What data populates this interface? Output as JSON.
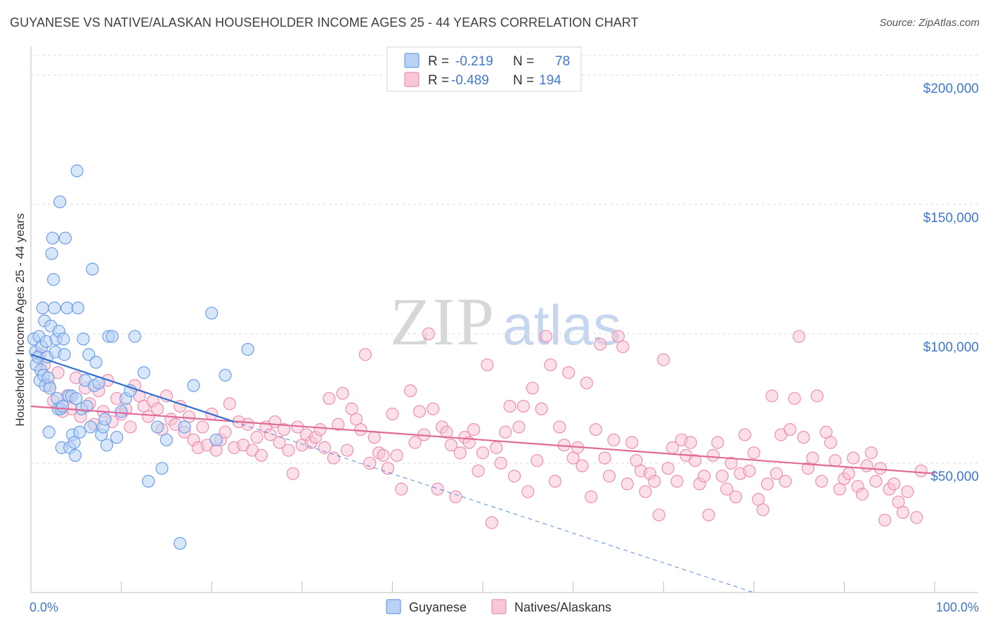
{
  "header": {
    "title": "GUYANESE VS NATIVE/ALASKAN HOUSEHOLDER INCOME AGES 25 - 44 YEARS CORRELATION CHART",
    "source": "Source: ZipAtlas.com"
  },
  "watermark": {
    "zip": "ZIP",
    "atlas": "atlas"
  },
  "colors": {
    "guyanese": "#6c9fe6",
    "guyanese_fill": "#b8d2f5",
    "natives": "#ec8fb0",
    "natives_fill": "#f7c6d7",
    "trend_blue": "#2f6fd0",
    "trend_pink": "#e06a98",
    "axis_text": "#3f78c8",
    "grid": "#dcdcdc"
  },
  "legend": {
    "rows": [
      {
        "r_label": "R =",
        "r_value": "-0.219",
        "n_label": "N =",
        "n_value": "78"
      },
      {
        "r_label": "R =",
        "r_value": "-0.489",
        "n_label": "N =",
        "n_value": "194"
      }
    ]
  },
  "chart_data": {
    "type": "scatter",
    "title": "GUYANESE VS NATIVE/ALASKAN HOUSEHOLDER INCOME AGES 25 - 44 YEARS CORRELATION CHART",
    "xlabel": "",
    "ylabel": "Householder Income Ages 25 - 44 years",
    "xlim": [
      0,
      100
    ],
    "ylim": [
      0,
      210000
    ],
    "x_tick_labels": [
      "0.0%",
      "100.0%"
    ],
    "y_ticks": [
      50000,
      100000,
      150000,
      200000
    ],
    "y_tick_labels": [
      "$50,000",
      "$100,000",
      "$150,000",
      "$200,000"
    ],
    "grid": true,
    "legend_position": "top-center",
    "series": [
      {
        "name": "Guyanese",
        "r": -0.219,
        "n": 78,
        "trend": {
          "x0": 0,
          "y0": 92000,
          "x1": 22.5,
          "y1": 66000,
          "dashed_to_x": 80,
          "dashed_to_y": 0
        },
        "points": [
          [
            0.3,
            98000
          ],
          [
            0.5,
            93000
          ],
          [
            0.6,
            88000
          ],
          [
            0.8,
            91000
          ],
          [
            0.9,
            99000
          ],
          [
            1.0,
            82000
          ],
          [
            1.1,
            86000
          ],
          [
            1.2,
            95000
          ],
          [
            1.3,
            110000
          ],
          [
            1.4,
            84000
          ],
          [
            1.5,
            105000
          ],
          [
            1.6,
            80000
          ],
          [
            1.7,
            97000
          ],
          [
            1.8,
            91000
          ],
          [
            1.9,
            83000
          ],
          [
            2.0,
            62000
          ],
          [
            2.1,
            79000
          ],
          [
            2.2,
            103000
          ],
          [
            2.3,
            131000
          ],
          [
            2.4,
            137000
          ],
          [
            2.5,
            121000
          ],
          [
            2.6,
            110000
          ],
          [
            2.7,
            93000
          ],
          [
            2.8,
            98000
          ],
          [
            2.9,
            75000
          ],
          [
            3.0,
            71000
          ],
          [
            3.1,
            101000
          ],
          [
            3.2,
            151000
          ],
          [
            3.3,
            71000
          ],
          [
            3.4,
            56000
          ],
          [
            3.5,
            72000
          ],
          [
            3.6,
            98000
          ],
          [
            3.7,
            92000
          ],
          [
            3.8,
            137000
          ],
          [
            4.0,
            110000
          ],
          [
            4.2,
            76000
          ],
          [
            4.3,
            56000
          ],
          [
            4.5,
            76000
          ],
          [
            4.6,
            61000
          ],
          [
            4.8,
            58000
          ],
          [
            4.9,
            53000
          ],
          [
            5.0,
            75000
          ],
          [
            5.1,
            163000
          ],
          [
            5.2,
            110000
          ],
          [
            5.4,
            62000
          ],
          [
            5.6,
            71000
          ],
          [
            5.8,
            98000
          ],
          [
            6.0,
            82000
          ],
          [
            6.2,
            72000
          ],
          [
            6.4,
            92000
          ],
          [
            6.6,
            64000
          ],
          [
            6.8,
            125000
          ],
          [
            7.0,
            80000
          ],
          [
            7.2,
            89000
          ],
          [
            7.5,
            81000
          ],
          [
            7.8,
            61000
          ],
          [
            8.0,
            64000
          ],
          [
            8.2,
            67000
          ],
          [
            8.4,
            57000
          ],
          [
            8.6,
            99000
          ],
          [
            9.0,
            99000
          ],
          [
            9.5,
            60000
          ],
          [
            10.0,
            70000
          ],
          [
            10.5,
            75000
          ],
          [
            11.0,
            78000
          ],
          [
            11.5,
            99000
          ],
          [
            12.5,
            85000
          ],
          [
            13.0,
            43000
          ],
          [
            14.0,
            64000
          ],
          [
            14.5,
            48000
          ],
          [
            15.0,
            59000
          ],
          [
            16.5,
            19000
          ],
          [
            17.0,
            64000
          ],
          [
            18.0,
            80000
          ],
          [
            20.0,
            108000
          ],
          [
            21.5,
            84000
          ],
          [
            24.0,
            94000
          ],
          [
            20.5,
            59000
          ]
        ]
      },
      {
        "name": "Natives/Alaskans",
        "r": -0.489,
        "n": 194,
        "trend": {
          "x0": 0,
          "y0": 72000,
          "x1": 100,
          "y1": 46000
        },
        "points": [
          [
            1.0,
            92000
          ],
          [
            1.5,
            88000
          ],
          [
            2.0,
            80000
          ],
          [
            2.5,
            74000
          ],
          [
            3.0,
            85000
          ],
          [
            3.5,
            70000
          ],
          [
            4.0,
            76000
          ],
          [
            4.5,
            71000
          ],
          [
            5.0,
            83000
          ],
          [
            5.5,
            68000
          ],
          [
            6.0,
            79000
          ],
          [
            6.5,
            73000
          ],
          [
            7.0,
            65000
          ],
          [
            7.5,
            78000
          ],
          [
            8.0,
            70000
          ],
          [
            8.5,
            82000
          ],
          [
            9.0,
            66000
          ],
          [
            9.5,
            75000
          ],
          [
            10.0,
            69000
          ],
          [
            10.5,
            71000
          ],
          [
            11.0,
            64000
          ],
          [
            11.5,
            80000
          ],
          [
            12.0,
            76000
          ],
          [
            12.5,
            72000
          ],
          [
            13.0,
            68000
          ],
          [
            13.5,
            74000
          ],
          [
            14.0,
            71000
          ],
          [
            14.5,
            63000
          ],
          [
            15.0,
            76000
          ],
          [
            15.5,
            67000
          ],
          [
            16.0,
            65000
          ],
          [
            16.5,
            72000
          ],
          [
            17.0,
            62000
          ],
          [
            17.5,
            68000
          ],
          [
            18.0,
            59000
          ],
          [
            18.5,
            56000
          ],
          [
            19.0,
            64000
          ],
          [
            19.5,
            57000
          ],
          [
            20.0,
            69000
          ],
          [
            20.5,
            55000
          ],
          [
            21.0,
            59000
          ],
          [
            21.5,
            62000
          ],
          [
            22.0,
            73000
          ],
          [
            22.5,
            56000
          ],
          [
            23.0,
            66000
          ],
          [
            23.5,
            57000
          ],
          [
            24.0,
            65000
          ],
          [
            24.5,
            55000
          ],
          [
            25.0,
            60000
          ],
          [
            25.5,
            53000
          ],
          [
            26.0,
            64000
          ],
          [
            26.5,
            61000
          ],
          [
            27.0,
            66000
          ],
          [
            27.5,
            58000
          ],
          [
            28.0,
            63000
          ],
          [
            28.5,
            55000
          ],
          [
            29.0,
            46000
          ],
          [
            29.5,
            64000
          ],
          [
            30.0,
            57000
          ],
          [
            30.5,
            61000
          ],
          [
            31.0,
            58000
          ],
          [
            31.5,
            60000
          ],
          [
            32.0,
            63000
          ],
          [
            32.5,
            56000
          ],
          [
            33.0,
            75000
          ],
          [
            33.5,
            52000
          ],
          [
            34.0,
            65000
          ],
          [
            34.5,
            77000
          ],
          [
            35.0,
            55000
          ],
          [
            35.5,
            71000
          ],
          [
            36.0,
            67000
          ],
          [
            36.5,
            63000
          ],
          [
            37.0,
            92000
          ],
          [
            37.5,
            50000
          ],
          [
            38.0,
            60000
          ],
          [
            38.5,
            54000
          ],
          [
            39.0,
            53000
          ],
          [
            39.5,
            48000
          ],
          [
            40.0,
            69000
          ],
          [
            40.5,
            53000
          ],
          [
            41.0,
            40000
          ],
          [
            42.0,
            78000
          ],
          [
            42.5,
            58000
          ],
          [
            43.0,
            70000
          ],
          [
            43.5,
            61000
          ],
          [
            44.0,
            100000
          ],
          [
            44.5,
            71000
          ],
          [
            45.0,
            40000
          ],
          [
            45.5,
            64000
          ],
          [
            46.0,
            62000
          ],
          [
            46.5,
            57000
          ],
          [
            47.0,
            37000
          ],
          [
            47.5,
            54000
          ],
          [
            48.0,
            60000
          ],
          [
            48.5,
            58000
          ],
          [
            49.0,
            63000
          ],
          [
            49.5,
            47000
          ],
          [
            50.0,
            54000
          ],
          [
            50.5,
            88000
          ],
          [
            51.0,
            27000
          ],
          [
            51.5,
            56000
          ],
          [
            52.0,
            50000
          ],
          [
            52.5,
            62000
          ],
          [
            53.0,
            72000
          ],
          [
            53.5,
            45000
          ],
          [
            54.0,
            64000
          ],
          [
            54.5,
            72000
          ],
          [
            55.0,
            39000
          ],
          [
            55.5,
            79000
          ],
          [
            56.0,
            51000
          ],
          [
            56.5,
            71000
          ],
          [
            57.0,
            99000
          ],
          [
            57.5,
            88000
          ],
          [
            58.0,
            43000
          ],
          [
            58.5,
            64000
          ],
          [
            59.0,
            57000
          ],
          [
            59.5,
            85000
          ],
          [
            60.0,
            52000
          ],
          [
            60.5,
            56000
          ],
          [
            61.0,
            49000
          ],
          [
            61.5,
            81000
          ],
          [
            62.0,
            37000
          ],
          [
            62.5,
            63000
          ],
          [
            63.0,
            96000
          ],
          [
            63.5,
            52000
          ],
          [
            64.0,
            45000
          ],
          [
            64.5,
            59000
          ],
          [
            65.0,
            99000
          ],
          [
            65.5,
            95000
          ],
          [
            66.0,
            42000
          ],
          [
            66.5,
            58000
          ],
          [
            67.0,
            51000
          ],
          [
            67.5,
            47000
          ],
          [
            68.0,
            39000
          ],
          [
            68.5,
            46000
          ],
          [
            69.0,
            43000
          ],
          [
            69.5,
            30000
          ],
          [
            70.0,
            90000
          ],
          [
            70.5,
            48000
          ],
          [
            71.0,
            56000
          ],
          [
            71.5,
            43000
          ],
          [
            72.0,
            59000
          ],
          [
            72.5,
            53000
          ],
          [
            73.0,
            58000
          ],
          [
            73.5,
            51000
          ],
          [
            74.0,
            42000
          ],
          [
            74.5,
            45000
          ],
          [
            75.0,
            30000
          ],
          [
            75.5,
            53000
          ],
          [
            76.0,
            58000
          ],
          [
            76.5,
            45000
          ],
          [
            77.0,
            40000
          ],
          [
            77.5,
            50000
          ],
          [
            78.0,
            37000
          ],
          [
            78.5,
            46000
          ],
          [
            79.0,
            61000
          ],
          [
            79.5,
            47000
          ],
          [
            80.0,
            54000
          ],
          [
            80.5,
            36000
          ],
          [
            81.0,
            32000
          ],
          [
            81.5,
            42000
          ],
          [
            82.0,
            76000
          ],
          [
            82.5,
            46000
          ],
          [
            83.0,
            61000
          ],
          [
            83.5,
            43000
          ],
          [
            84.0,
            63000
          ],
          [
            84.5,
            75000
          ],
          [
            85.0,
            99000
          ],
          [
            85.5,
            60000
          ],
          [
            86.0,
            48000
          ],
          [
            86.5,
            52000
          ],
          [
            87.0,
            76000
          ],
          [
            87.5,
            43000
          ],
          [
            88.0,
            62000
          ],
          [
            88.5,
            58000
          ],
          [
            89.0,
            51000
          ],
          [
            89.5,
            40000
          ],
          [
            90.0,
            44000
          ],
          [
            90.5,
            46000
          ],
          [
            91.0,
            52000
          ],
          [
            91.5,
            41000
          ],
          [
            92.0,
            38000
          ],
          [
            92.5,
            49000
          ],
          [
            93.0,
            54000
          ],
          [
            93.5,
            43000
          ],
          [
            94.0,
            48000
          ],
          [
            94.5,
            28000
          ],
          [
            95.0,
            40000
          ],
          [
            95.5,
            42000
          ],
          [
            96.0,
            35000
          ],
          [
            96.5,
            31000
          ],
          [
            97.0,
            39000
          ],
          [
            98.0,
            29000
          ],
          [
            98.5,
            47000
          ]
        ]
      }
    ]
  },
  "bottom_legend": {
    "items": [
      "Guyanese",
      "Natives/Alaskans"
    ]
  }
}
